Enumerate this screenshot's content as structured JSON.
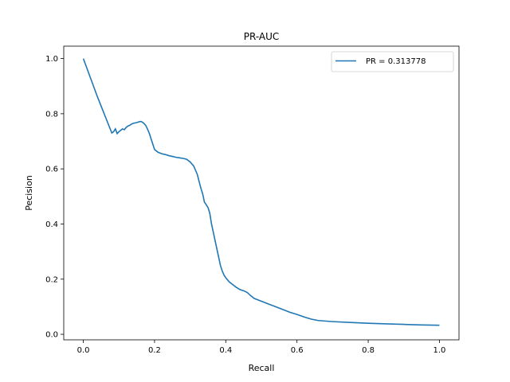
{
  "chart_data": {
    "type": "line",
    "title": "PR-AUC",
    "xlabel": "Recall",
    "ylabel": "Pecision",
    "xlim": [
      -0.055,
      1.055
    ],
    "ylim": [
      -0.02,
      1.045
    ],
    "xticks": [
      0.0,
      0.2,
      0.4,
      0.6,
      0.8,
      1.0
    ],
    "xtick_labels": [
      "0.0",
      "0.2",
      "0.4",
      "0.6",
      "0.8",
      "1.0"
    ],
    "yticks": [
      0.0,
      0.2,
      0.4,
      0.6,
      0.8,
      1.0
    ],
    "ytick_labels": [
      "0.0",
      "0.2",
      "0.4",
      "0.6",
      "0.8",
      "1.0"
    ],
    "grid": false,
    "legend_position": "top-right",
    "series": [
      {
        "name": "PR = 0.313778",
        "color": "#1f77b4",
        "x": [
          0.0,
          0.02,
          0.04,
          0.06,
          0.08,
          0.085,
          0.09,
          0.095,
          0.1,
          0.105,
          0.11,
          0.115,
          0.12,
          0.125,
          0.13,
          0.135,
          0.14,
          0.15,
          0.16,
          0.165,
          0.17,
          0.175,
          0.18,
          0.185,
          0.19,
          0.195,
          0.2,
          0.21,
          0.22,
          0.23,
          0.24,
          0.25,
          0.26,
          0.27,
          0.28,
          0.29,
          0.3,
          0.31,
          0.32,
          0.325,
          0.33,
          0.335,
          0.34,
          0.345,
          0.35,
          0.355,
          0.36,
          0.365,
          0.37,
          0.375,
          0.38,
          0.385,
          0.39,
          0.395,
          0.4,
          0.41,
          0.42,
          0.43,
          0.44,
          0.45,
          0.46,
          0.47,
          0.48,
          0.5,
          0.52,
          0.54,
          0.56,
          0.58,
          0.6,
          0.62,
          0.64,
          0.66,
          0.7,
          0.75,
          0.8,
          0.85,
          0.9,
          0.95,
          1.0
        ],
        "y": [
          1.0,
          0.93,
          0.86,
          0.795,
          0.73,
          0.735,
          0.745,
          0.728,
          0.735,
          0.74,
          0.745,
          0.742,
          0.75,
          0.755,
          0.758,
          0.762,
          0.765,
          0.768,
          0.772,
          0.77,
          0.765,
          0.758,
          0.745,
          0.73,
          0.71,
          0.69,
          0.67,
          0.66,
          0.655,
          0.652,
          0.648,
          0.645,
          0.642,
          0.64,
          0.638,
          0.635,
          0.625,
          0.61,
          0.58,
          0.555,
          0.53,
          0.51,
          0.48,
          0.47,
          0.46,
          0.44,
          0.4,
          0.37,
          0.34,
          0.31,
          0.28,
          0.25,
          0.23,
          0.215,
          0.205,
          0.19,
          0.18,
          0.17,
          0.162,
          0.158,
          0.152,
          0.14,
          0.13,
          0.12,
          0.11,
          0.1,
          0.09,
          0.08,
          0.072,
          0.063,
          0.055,
          0.05,
          0.046,
          0.043,
          0.04,
          0.038,
          0.036,
          0.034,
          0.033
        ]
      }
    ]
  }
}
